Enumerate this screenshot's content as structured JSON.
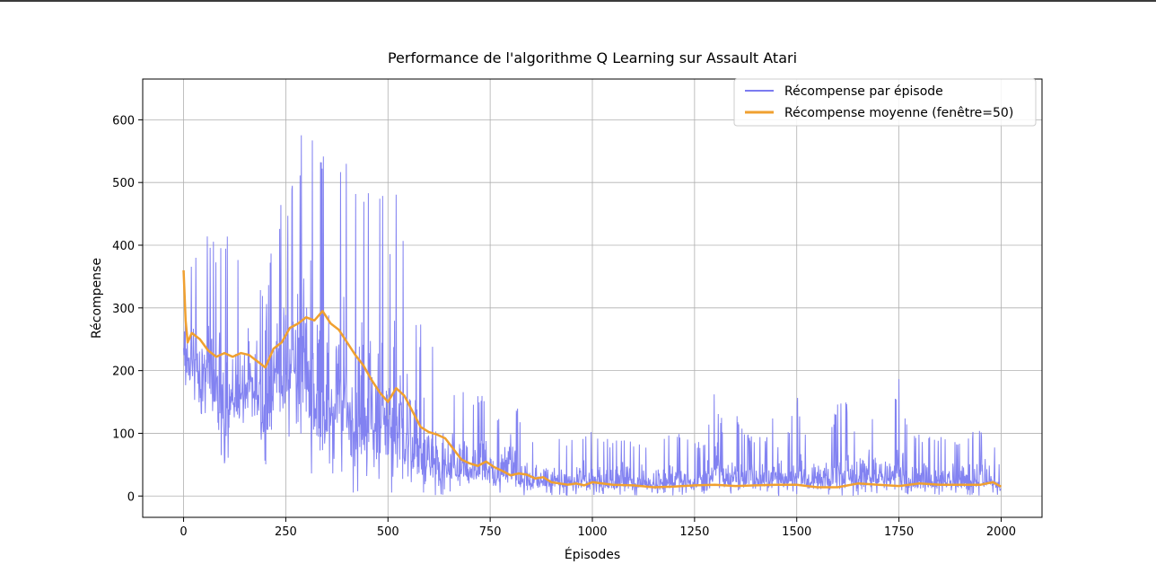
{
  "chart_data": {
    "type": "line",
    "title": "Performance de l'algorithme Q Learning sur Assault Atari",
    "xlabel": "Épisodes",
    "ylabel": "Récompense",
    "xlim": [
      -100,
      2100
    ],
    "ylim": [
      -34,
      665
    ],
    "xticks": [
      0,
      250,
      500,
      750,
      1000,
      1250,
      1500,
      1750,
      2000
    ],
    "xtick_labels": [
      "0",
      "250",
      "500",
      "750",
      "1000",
      "1250",
      "1500",
      "1750",
      "2000"
    ],
    "yticks": [
      0,
      100,
      200,
      300,
      400,
      500,
      600
    ],
    "ytick_labels": [
      "0",
      "100",
      "200",
      "300",
      "400",
      "500",
      "600"
    ],
    "grid": true,
    "legend_position": "top-right",
    "colors": {
      "reward": "#7b7bf0",
      "mean": "#f0a030"
    },
    "series": [
      {
        "name": "Récompense par épisode",
        "description": "noisy per-episode reward (2000 episodes), envelope min/max sampled every 25 episodes",
        "x": [
          0,
          25,
          50,
          75,
          100,
          125,
          150,
          175,
          200,
          225,
          250,
          275,
          300,
          325,
          350,
          375,
          400,
          425,
          450,
          475,
          500,
          525,
          550,
          575,
          600,
          625,
          650,
          675,
          700,
          725,
          750,
          775,
          800,
          825,
          850,
          875,
          900,
          925,
          950,
          975,
          1000,
          1025,
          1050,
          1075,
          1100,
          1125,
          1150,
          1175,
          1200,
          1225,
          1250,
          1275,
          1300,
          1325,
          1350,
          1375,
          1400,
          1425,
          1450,
          1475,
          1500,
          1525,
          1550,
          1575,
          1600,
          1625,
          1650,
          1675,
          1700,
          1725,
          1750,
          1775,
          1800,
          1825,
          1850,
          1875,
          1900,
          1925,
          1950,
          1975,
          2000
        ],
        "min": [
          170,
          150,
          120,
          90,
          45,
          85,
          100,
          110,
          40,
          120,
          90,
          100,
          60,
          0,
          20,
          30,
          0,
          0,
          0,
          0,
          0,
          0,
          0,
          0,
          0,
          0,
          0,
          0,
          0,
          0,
          0,
          0,
          0,
          0,
          0,
          0,
          0,
          0,
          0,
          0,
          0,
          0,
          0,
          0,
          0,
          0,
          0,
          0,
          0,
          0,
          0,
          0,
          0,
          0,
          0,
          0,
          0,
          0,
          0,
          0,
          0,
          0,
          0,
          0,
          0,
          0,
          0,
          0,
          0,
          0,
          0,
          0,
          0,
          0,
          0,
          0,
          0,
          0,
          0,
          0,
          0
        ],
        "max": [
          400,
          380,
          440,
          420,
          440,
          400,
          380,
          400,
          300,
          460,
          480,
          560,
          610,
          630,
          560,
          545,
          530,
          545,
          520,
          545,
          420,
          540,
          350,
          280,
          260,
          200,
          180,
          190,
          150,
          170,
          150,
          130,
          210,
          110,
          100,
          100,
          110,
          90,
          90,
          100,
          110,
          100,
          85,
          100,
          85,
          85,
          90,
          100,
          100,
          100,
          90,
          85,
          170,
          100,
          150,
          100,
          100,
          90,
          150,
          100,
          165,
          90,
          90,
          100,
          150,
          155,
          100,
          150,
          130,
          100,
          190,
          100,
          100,
          100,
          100,
          100,
          90,
          100,
          110,
          100,
          45
        ],
        "episodes": 2000
      },
      {
        "name": "Récompense moyenne (fenêtre=50)",
        "x": [
          0,
          5,
          10,
          20,
          40,
          60,
          80,
          100,
          120,
          140,
          160,
          180,
          200,
          220,
          240,
          260,
          280,
          300,
          320,
          340,
          360,
          380,
          400,
          420,
          440,
          460,
          480,
          500,
          520,
          540,
          560,
          580,
          600,
          620,
          640,
          660,
          680,
          700,
          720,
          740,
          760,
          780,
          800,
          820,
          840,
          860,
          880,
          900,
          920,
          940,
          960,
          980,
          1000,
          1050,
          1100,
          1150,
          1200,
          1250,
          1300,
          1350,
          1400,
          1450,
          1500,
          1550,
          1600,
          1650,
          1700,
          1750,
          1800,
          1850,
          1900,
          1950,
          1980,
          2000
        ],
        "values": [
          360,
          280,
          245,
          260,
          250,
          232,
          222,
          228,
          222,
          228,
          225,
          215,
          205,
          235,
          245,
          268,
          275,
          285,
          280,
          295,
          275,
          265,
          245,
          225,
          208,
          185,
          165,
          150,
          172,
          160,
          135,
          110,
          102,
          98,
          92,
          75,
          58,
          52,
          48,
          55,
          46,
          40,
          33,
          36,
          34,
          28,
          30,
          22,
          20,
          18,
          20,
          17,
          22,
          18,
          17,
          14,
          15,
          17,
          18,
          16,
          17,
          18,
          18,
          14,
          14,
          20,
          18,
          16,
          20,
          18,
          18,
          18,
          22,
          15
        ]
      }
    ]
  }
}
